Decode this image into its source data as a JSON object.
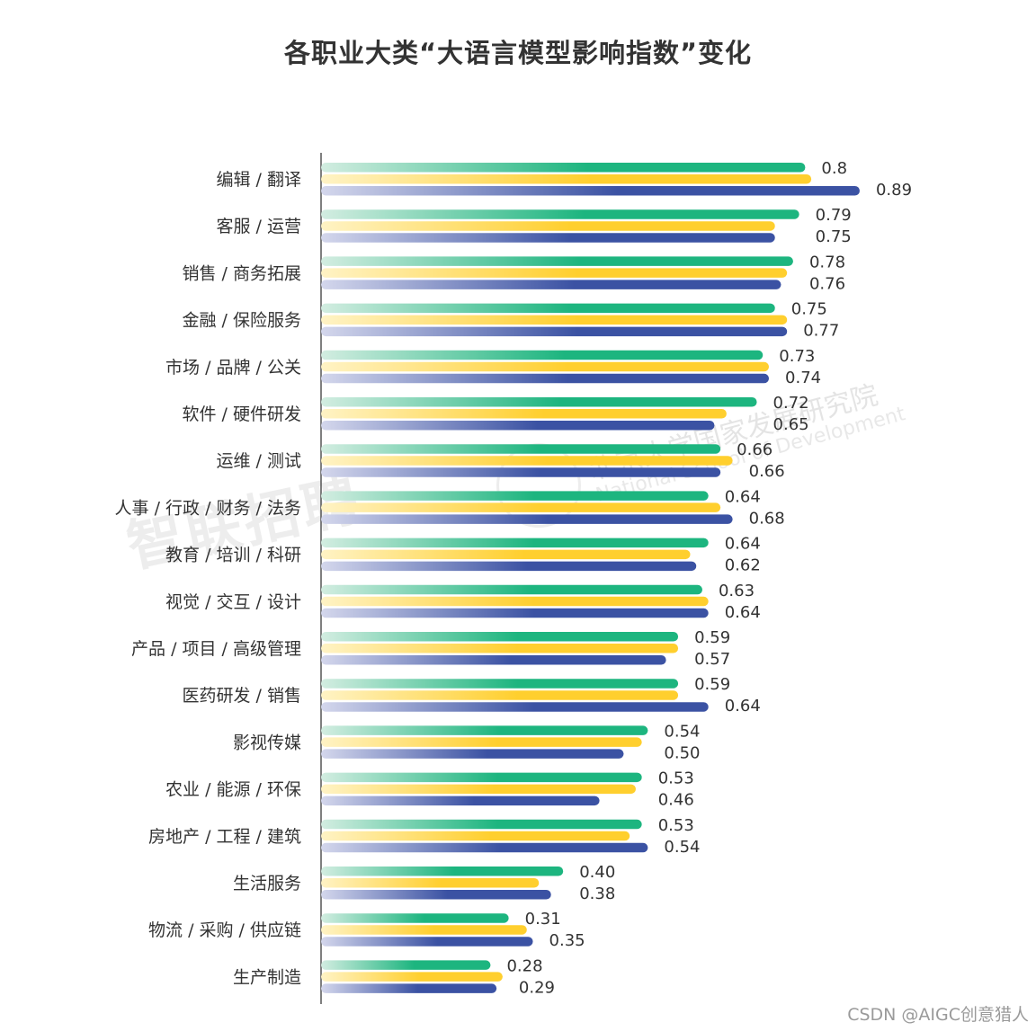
{
  "chart_data": {
    "type": "bar",
    "orientation": "horizontal",
    "title": "各职业大类“大语言模型影响指数”变化",
    "categories": [
      "编辑 / 翻译",
      "客服 / 运营",
      "销售 / 商务拓展",
      "金融 / 保险服务",
      "市场 / 品牌 / 公关",
      "软件 / 硬件研发",
      "运维 / 测试",
      "人事 / 行政 / 财务 / 法务",
      "教育 / 培训 / 科研",
      "视觉 / 交互 / 设计",
      "产品 / 项目 / 高级管理",
      "医药研发 / 销售",
      "影视传媒",
      "农业 / 能源 / 环保",
      "房地产 / 工程 / 建筑",
      "生活服务",
      "物流 / 采购 / 供应链",
      "生产制造"
    ],
    "series": [
      {
        "color": "#1db57f",
        "values": [
          0.8,
          0.79,
          0.78,
          0.75,
          0.73,
          0.72,
          0.66,
          0.64,
          0.64,
          0.63,
          0.59,
          0.59,
          0.54,
          0.53,
          0.53,
          0.4,
          0.31,
          0.28
        ],
        "labels": [
          "0.8",
          "0.79",
          "0.78",
          "0.75",
          "0.73",
          "0.72",
          "0.66",
          "0.64",
          "0.64",
          "0.63",
          "0.59",
          "0.59",
          "0.54",
          "0.53",
          "0.53",
          "0.40",
          "0.31",
          "0.28"
        ]
      },
      {
        "color": "#ffcf2e",
        "values": [
          0.81,
          0.75,
          0.77,
          0.77,
          0.74,
          0.67,
          0.68,
          0.66,
          0.61,
          0.64,
          0.59,
          0.59,
          0.53,
          0.52,
          0.51,
          0.36,
          0.34,
          0.3
        ],
        "labels": [
          null,
          null,
          null,
          null,
          null,
          null,
          null,
          null,
          null,
          null,
          null,
          null,
          null,
          null,
          null,
          null,
          null,
          null
        ]
      },
      {
        "color": "#3b52a3",
        "values": [
          0.89,
          0.75,
          0.76,
          0.77,
          0.74,
          0.65,
          0.66,
          0.68,
          0.62,
          0.64,
          0.57,
          0.64,
          0.5,
          0.46,
          0.54,
          0.38,
          0.35,
          0.29
        ],
        "labels": [
          "0.89",
          "0.75",
          "0.76",
          "0.77",
          "0.74",
          "0.65",
          "0.66",
          "0.68",
          "0.62",
          "0.64",
          "0.57",
          "0.64",
          "0.50",
          "0.46",
          "0.54",
          "0.38",
          "0.35",
          "0.29"
        ]
      }
    ],
    "xlim": [
      0,
      1
    ],
    "grid": false,
    "legend": "none"
  },
  "watermarks": {
    "brand": "智联招聘",
    "org": "北京大学国家发展研究院",
    "org_en": "National School of Development"
  },
  "credit": "CSDN @AIGC创意猎人"
}
